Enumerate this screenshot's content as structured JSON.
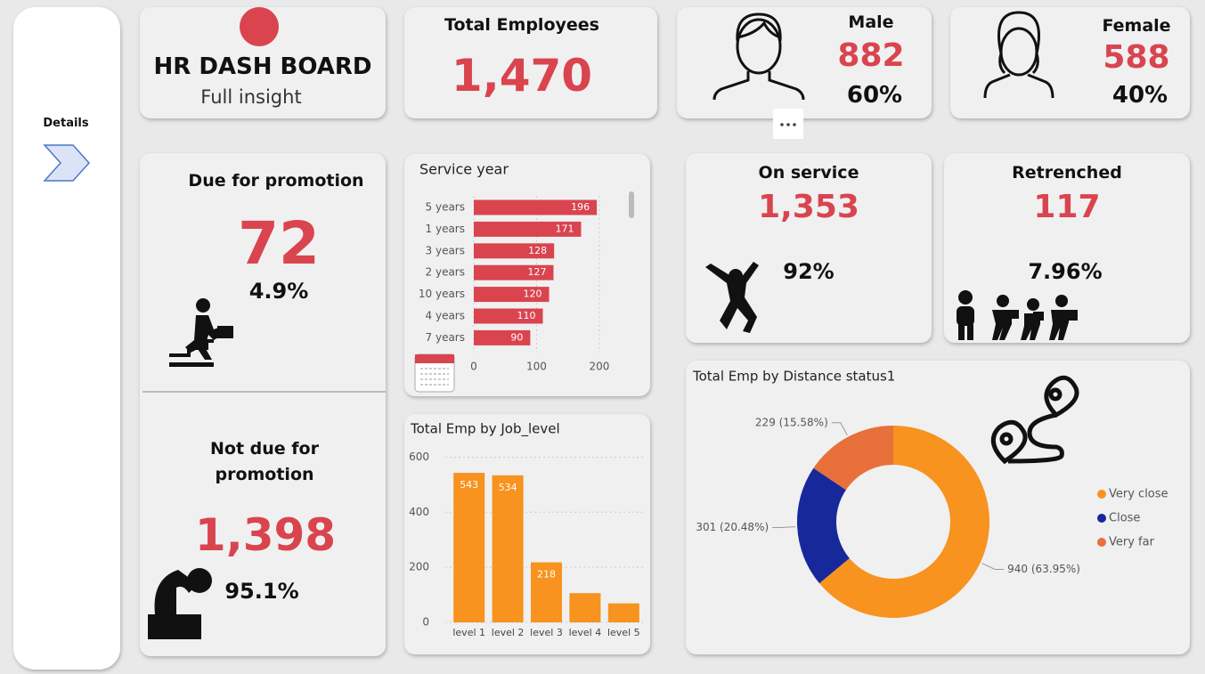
{
  "nav": {
    "label": "Details"
  },
  "header": {
    "title": "HR DASH BOARD",
    "subtitle": "Full insight"
  },
  "total_employees": {
    "label": "Total Employees",
    "value": "1,470"
  },
  "male": {
    "label": "Male",
    "value": "882",
    "percent": "60%"
  },
  "female": {
    "label": "Female",
    "value": "588",
    "percent": "40%"
  },
  "due_promotion": {
    "label": "Due for promotion",
    "value": "72",
    "percent": "4.9%"
  },
  "not_due_promotion": {
    "label": "Not due for promotion",
    "value": "1,398",
    "percent": "95.1%"
  },
  "on_service": {
    "label": "On service",
    "value": "1,353",
    "percent": "92%"
  },
  "retrenched": {
    "label": "Retrenched",
    "value": "117",
    "percent": "7.96%"
  },
  "service_year": {
    "type": "bar",
    "title": "Service year",
    "categories": [
      "5 years",
      "1 years",
      "3 years",
      "2 years",
      "10 years",
      "4 years",
      "7 years"
    ],
    "values": [
      196,
      171,
      128,
      127,
      120,
      110,
      90
    ],
    "color": "#d9444f",
    "xlim": [
      0,
      220
    ],
    "xticks": [
      0,
      100,
      200
    ],
    "grid": true
  },
  "job_level": {
    "type": "bar",
    "title": "Total Emp by Job_level",
    "categories": [
      "level 1",
      "level 2",
      "level 3",
      "level 4",
      "level 5"
    ],
    "values": [
      543,
      534,
      218,
      106,
      69
    ],
    "color": "#f7931e",
    "ylim": [
      0,
      650
    ],
    "yticks": [
      0,
      200,
      400,
      600
    ],
    "grid": true
  },
  "distance": {
    "type": "donut",
    "title": "Total Emp by Distance status1",
    "categories": [
      "Very close",
      "Close",
      "Very far"
    ],
    "values": [
      940,
      301,
      229
    ],
    "value_labels": [
      "940 (63.95%)",
      "301 (20.48%)",
      "229 (15.58%)"
    ],
    "colors": [
      "#f7931e",
      "#17289b",
      "#e8703a"
    ],
    "legend": "right"
  }
}
